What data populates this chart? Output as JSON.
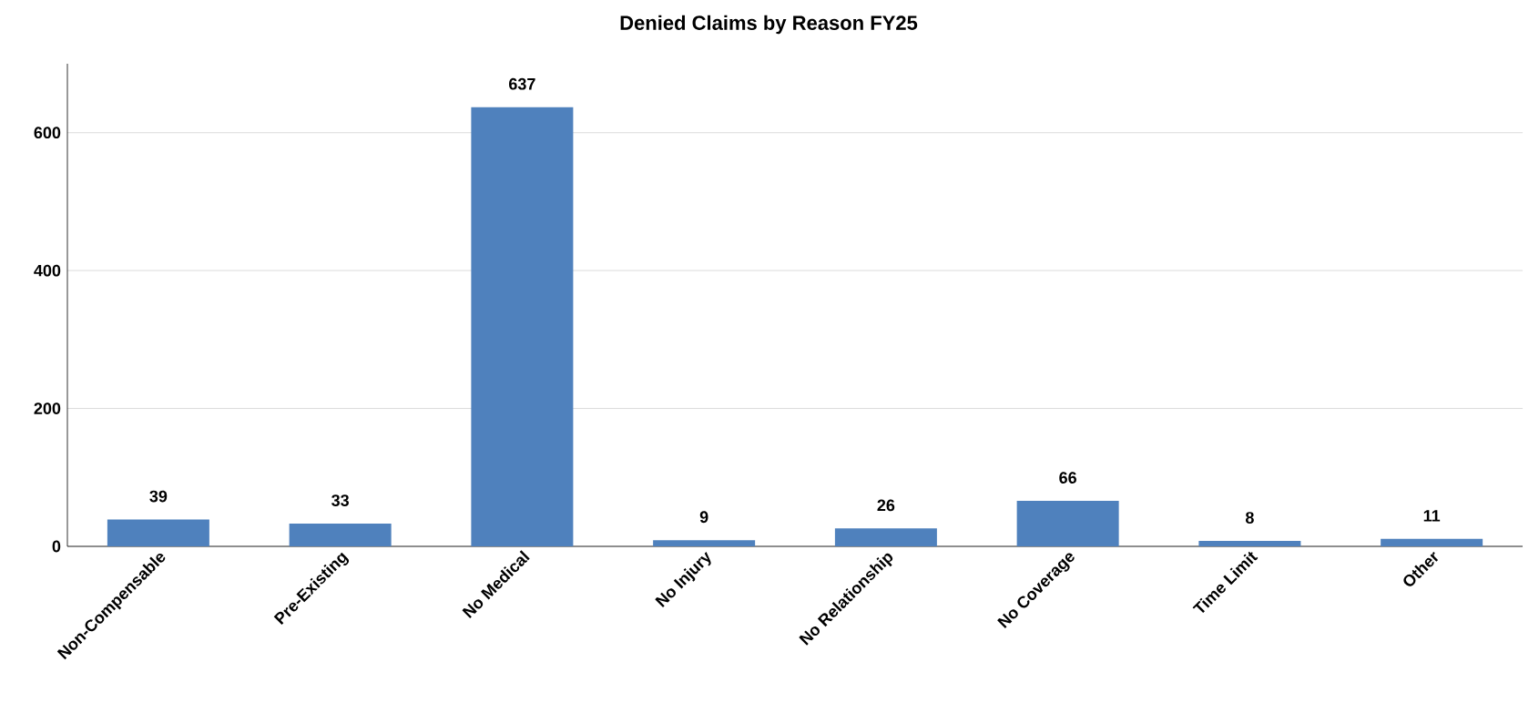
{
  "chart_data": {
    "type": "bar",
    "title": "Denied Claims by Reason FY25",
    "categories": [
      "Non-Compensable",
      "Pre-Existing",
      "No Medical",
      "No Injury",
      "No Relationship",
      "No Coverage",
      "Time Limit",
      "Other"
    ],
    "values": [
      39,
      33,
      637,
      9,
      26,
      66,
      8,
      11
    ],
    "color": "#4f81bd",
    "ylim": [
      0,
      700
    ],
    "yticks": [
      0,
      200,
      400,
      600
    ],
    "grid": "y",
    "data_labels": true
  }
}
